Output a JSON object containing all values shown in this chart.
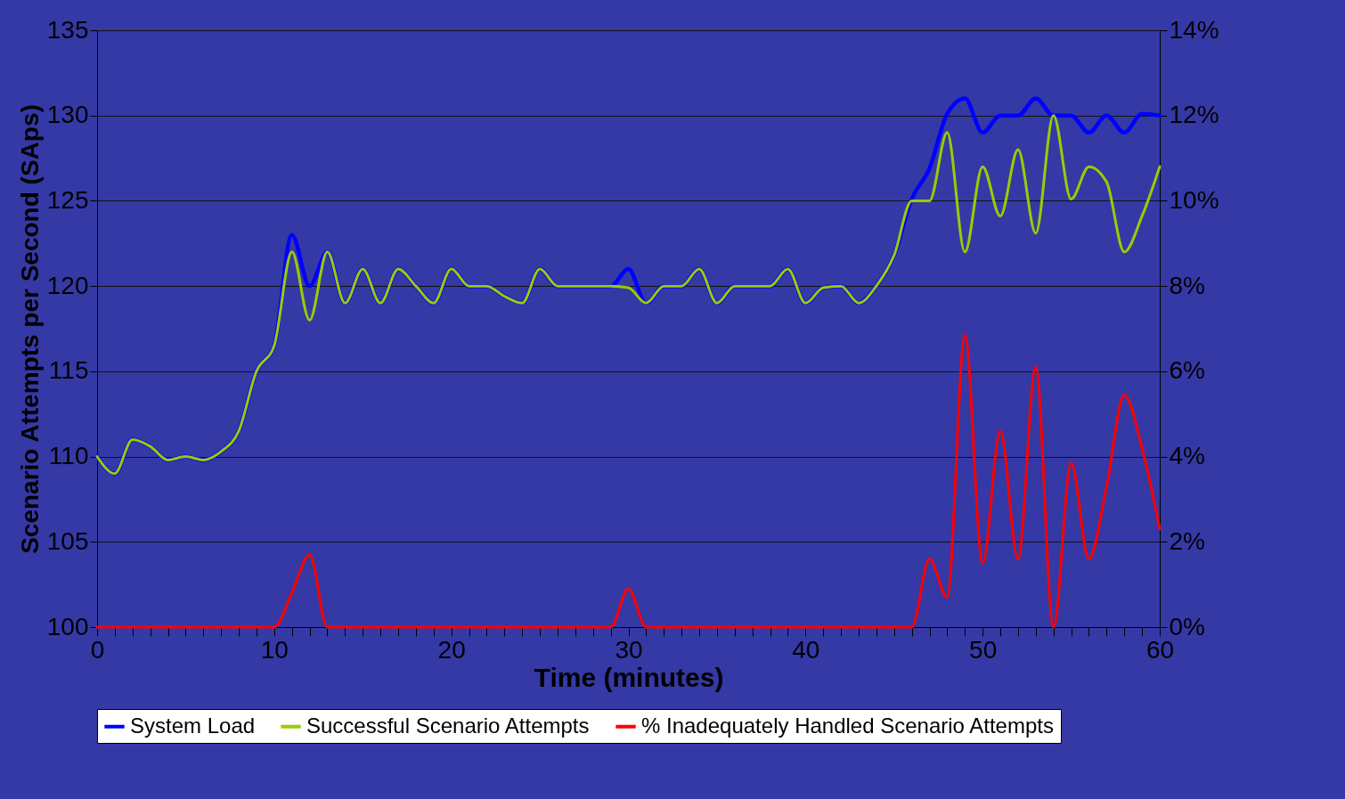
{
  "chart_data": {
    "type": "line",
    "xlabel": "Time (minutes)",
    "ylabel": "Scenario Attempts per Second (SAps)",
    "x": [
      0,
      1,
      2,
      3,
      4,
      5,
      6,
      7,
      8,
      9,
      10,
      11,
      12,
      13,
      14,
      15,
      16,
      17,
      18,
      19,
      20,
      21,
      22,
      23,
      24,
      25,
      26,
      27,
      28,
      29,
      30,
      31,
      32,
      33,
      34,
      35,
      36,
      37,
      38,
      39,
      40,
      41,
      42,
      43,
      44,
      45,
      46,
      47,
      48,
      49,
      50,
      51,
      52,
      53,
      54,
      55,
      56,
      57,
      58,
      59,
      60
    ],
    "series": [
      {
        "name": "System Load",
        "color": "#0000ff",
        "values": [
          110,
          109,
          111,
          110.6,
          109.8,
          110,
          109.8,
          110.3,
          111.5,
          115,
          116.5,
          123,
          120,
          122,
          119,
          121,
          119,
          121,
          120,
          119,
          121,
          120,
          120,
          119.4,
          119,
          121,
          120,
          120,
          120,
          120,
          121,
          119,
          120,
          120,
          121,
          119,
          120,
          120,
          120,
          121,
          119,
          119.9,
          120,
          119,
          120,
          121.8,
          125.1,
          126.9,
          130.1,
          131,
          129,
          130,
          130,
          131,
          130,
          130,
          129,
          130,
          129,
          130.1,
          130
        ]
      },
      {
        "name": "Successful Scenario Attempts",
        "color": "#99cc00",
        "values": [
          110,
          109,
          111,
          110.6,
          109.8,
          110,
          109.8,
          110.3,
          111.5,
          115,
          116.5,
          122,
          118,
          122,
          119,
          121,
          119,
          121,
          120,
          119,
          121,
          120,
          120,
          119.4,
          119,
          121,
          120,
          120,
          120,
          120,
          119.9,
          119,
          120,
          120,
          121,
          119,
          120,
          120,
          120,
          121,
          119,
          119.9,
          120,
          119,
          120,
          121.8,
          125,
          125,
          129,
          122,
          127,
          124.1,
          128,
          123.1,
          130,
          125.1,
          127,
          126.1,
          122,
          124.1,
          127
        ]
      },
      {
        "name": "% Inadequately Handled Scenario Attempts",
        "color": "#ff0000",
        "axis": "y2",
        "values": [
          0,
          0,
          0,
          0,
          0,
          0,
          0,
          0,
          0,
          0,
          0,
          0.8,
          1.7,
          0,
          0,
          0,
          0,
          0,
          0,
          0,
          0,
          0,
          0,
          0,
          0,
          0,
          0,
          0,
          0,
          0,
          0.9,
          0,
          0,
          0,
          0,
          0,
          0,
          0,
          0,
          0,
          0,
          0,
          0,
          0,
          0,
          0,
          0,
          1.6,
          0.7,
          6.85,
          1.5,
          4.6,
          1.6,
          6.1,
          0,
          3.85,
          1.6,
          3.3,
          5.45,
          4.2,
          2.3
        ]
      }
    ],
    "xlim": [
      0,
      60
    ],
    "xticks": [
      0,
      {
        "value": 1,
        "label": null
      },
      {
        "value": 2,
        "label": null
      },
      {
        "value": 3,
        "label": null
      },
      {
        "value": 4,
        "label": null
      },
      {
        "value": 5,
        "label": null
      },
      {
        "value": 6,
        "label": null
      },
      {
        "value": 7,
        "label": null
      },
      {
        "value": 8,
        "label": null
      },
      {
        "value": 9,
        "label": null
      },
      10,
      {
        "value": 11,
        "label": null
      },
      {
        "value": 12,
        "label": null
      },
      {
        "value": 13,
        "label": null
      },
      {
        "value": 14,
        "label": null
      },
      {
        "value": 15,
        "label": null
      },
      {
        "value": 16,
        "label": null
      },
      {
        "value": 17,
        "label": null
      },
      {
        "value": 18,
        "label": null
      },
      {
        "value": 19,
        "label": null
      },
      20,
      {
        "value": 21,
        "label": null
      },
      {
        "value": 22,
        "label": null
      },
      {
        "value": 23,
        "label": null
      },
      {
        "value": 24,
        "label": null
      },
      {
        "value": 25,
        "label": null
      },
      {
        "value": 26,
        "label": null
      },
      {
        "value": 27,
        "label": null
      },
      {
        "value": 28,
        "label": null
      },
      {
        "value": 29,
        "label": null
      },
      30,
      {
        "value": 31,
        "label": null
      },
      {
        "value": 32,
        "label": null
      },
      {
        "value": 33,
        "label": null
      },
      {
        "value": 34,
        "label": null
      },
      {
        "value": 35,
        "label": null
      },
      {
        "value": 36,
        "label": null
      },
      {
        "value": 37,
        "label": null
      },
      {
        "value": 38,
        "label": null
      },
      {
        "value": 39,
        "label": null
      },
      40,
      {
        "value": 41,
        "label": null
      },
      {
        "value": 42,
        "label": null
      },
      {
        "value": 43,
        "label": null
      },
      {
        "value": 44,
        "label": null
      },
      {
        "value": 45,
        "label": null
      },
      {
        "value": 46,
        "label": null
      },
      {
        "value": 47,
        "label": null
      },
      {
        "value": 48,
        "label": null
      },
      {
        "value": 49,
        "label": null
      },
      50,
      {
        "value": 51,
        "label": null
      },
      {
        "value": 52,
        "label": null
      },
      {
        "value": 53,
        "label": null
      },
      {
        "value": 54,
        "label": null
      },
      {
        "value": 55,
        "label": null
      },
      {
        "value": 56,
        "label": null
      },
      {
        "value": 57,
        "label": null
      },
      {
        "value": 58,
        "label": null
      },
      {
        "value": 59,
        "label": null
      },
      60
    ],
    "ylim": [
      100,
      135
    ],
    "yticks": [
      100,
      105,
      110,
      115,
      120,
      125,
      130,
      135
    ],
    "y2lim": [
      0,
      14
    ],
    "y2ticks": [
      {
        "value": 0,
        "label": "0%"
      },
      {
        "value": 2,
        "label": "2%"
      },
      {
        "value": 4,
        "label": "4%"
      },
      {
        "value": 6,
        "label": "6%"
      },
      {
        "value": 8,
        "label": "8%"
      },
      {
        "value": 10,
        "label": "10%"
      },
      {
        "value": 12,
        "label": "12%"
      },
      {
        "value": 14,
        "label": "14%"
      }
    ],
    "grid": "y",
    "legend": "bottom",
    "line_style": "solid"
  }
}
